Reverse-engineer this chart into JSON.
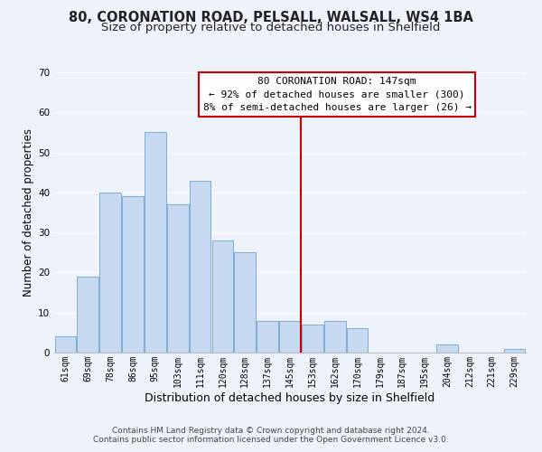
{
  "title_line1": "80, CORONATION ROAD, PELSALL, WALSALL, WS4 1BA",
  "title_line2": "Size of property relative to detached houses in Shelfield",
  "xlabel": "Distribution of detached houses by size in Shelfield",
  "ylabel": "Number of detached properties",
  "bin_labels": [
    "61sqm",
    "69sqm",
    "78sqm",
    "86sqm",
    "95sqm",
    "103sqm",
    "111sqm",
    "120sqm",
    "128sqm",
    "137sqm",
    "145sqm",
    "153sqm",
    "162sqm",
    "170sqm",
    "179sqm",
    "187sqm",
    "195sqm",
    "204sqm",
    "212sqm",
    "221sqm",
    "229sqm"
  ],
  "bar_heights": [
    4,
    19,
    40,
    39,
    55,
    37,
    43,
    28,
    25,
    8,
    8,
    7,
    8,
    6,
    0,
    0,
    0,
    2,
    0,
    0,
    1
  ],
  "bar_color": "#c6d9f0",
  "bar_edge_color": "#7bafd4",
  "vline_x": 10.5,
  "vline_color": "#cc0000",
  "annotation_title": "80 CORONATION ROAD: 147sqm",
  "annotation_line2": "← 92% of detached houses are smaller (300)",
  "annotation_line3": "8% of semi-detached houses are larger (26) →",
  "ylim": [
    0,
    70
  ],
  "yticks": [
    0,
    10,
    20,
    30,
    40,
    50,
    60,
    70
  ],
  "footer_line1": "Contains HM Land Registry data © Crown copyright and database right 2024.",
  "footer_line2": "Contains public sector information licensed under the Open Government Licence v3.0.",
  "background_color": "#eef2fa",
  "grid_color": "#ffffff",
  "title_fontsize": 10.5,
  "subtitle_fontsize": 9.5,
  "axis_label_fontsize": 8.5,
  "tick_fontsize": 7,
  "annotation_fontsize": 8,
  "footer_fontsize": 6.5
}
